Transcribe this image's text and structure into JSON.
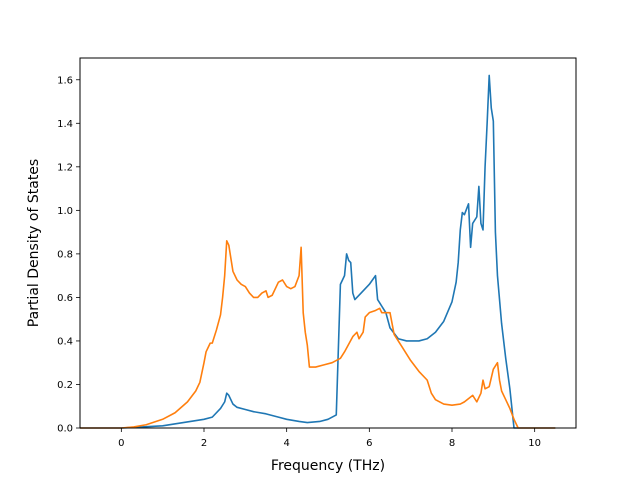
{
  "chart_data": {
    "type": "line",
    "title": "",
    "xlabel": "Frequency (THz)",
    "ylabel": "Partial Density of States",
    "xlim": [
      -1.0,
      11.0
    ],
    "ylim": [
      0.0,
      1.7
    ],
    "xticks": [
      0,
      2,
      4,
      6,
      8,
      10
    ],
    "yticks": [
      0.0,
      0.2,
      0.4,
      0.6,
      0.8,
      1.0,
      1.2,
      1.4,
      1.6
    ],
    "xtick_labels": [
      "0",
      "2",
      "4",
      "6",
      "8",
      "10"
    ],
    "ytick_labels": [
      "0.0",
      "0.2",
      "0.4",
      "0.6",
      "0.8",
      "1.0",
      "1.2",
      "1.4",
      "1.6"
    ],
    "grid": false,
    "legend": false,
    "series": [
      {
        "color": "#1f77b4",
        "points": [
          [
            -1.0,
            0.0
          ],
          [
            0.0,
            0.0
          ],
          [
            0.5,
            0.005
          ],
          [
            1.0,
            0.01
          ],
          [
            1.5,
            0.025
          ],
          [
            2.0,
            0.04
          ],
          [
            2.2,
            0.05
          ],
          [
            2.4,
            0.09
          ],
          [
            2.5,
            0.12
          ],
          [
            2.55,
            0.16
          ],
          [
            2.6,
            0.15
          ],
          [
            2.7,
            0.11
          ],
          [
            2.8,
            0.095
          ],
          [
            3.0,
            0.085
          ],
          [
            3.2,
            0.075
          ],
          [
            3.5,
            0.065
          ],
          [
            3.8,
            0.05
          ],
          [
            4.0,
            0.04
          ],
          [
            4.3,
            0.03
          ],
          [
            4.5,
            0.025
          ],
          [
            4.8,
            0.03
          ],
          [
            5.0,
            0.04
          ],
          [
            5.2,
            0.06
          ],
          [
            5.3,
            0.66
          ],
          [
            5.4,
            0.7
          ],
          [
            5.45,
            0.8
          ],
          [
            5.5,
            0.77
          ],
          [
            5.55,
            0.76
          ],
          [
            5.6,
            0.62
          ],
          [
            5.65,
            0.59
          ],
          [
            5.8,
            0.62
          ],
          [
            6.0,
            0.66
          ],
          [
            6.15,
            0.7
          ],
          [
            6.2,
            0.59
          ],
          [
            6.4,
            0.53
          ],
          [
            6.5,
            0.46
          ],
          [
            6.7,
            0.41
          ],
          [
            6.9,
            0.4
          ],
          [
            7.2,
            0.4
          ],
          [
            7.4,
            0.41
          ],
          [
            7.6,
            0.44
          ],
          [
            7.8,
            0.49
          ],
          [
            8.0,
            0.58
          ],
          [
            8.1,
            0.67
          ],
          [
            8.15,
            0.76
          ],
          [
            8.2,
            0.91
          ],
          [
            8.25,
            0.99
          ],
          [
            8.3,
            0.98
          ],
          [
            8.4,
            1.03
          ],
          [
            8.45,
            0.83
          ],
          [
            8.5,
            0.94
          ],
          [
            8.6,
            0.97
          ],
          [
            8.65,
            1.11
          ],
          [
            8.7,
            0.94
          ],
          [
            8.75,
            0.91
          ],
          [
            8.8,
            1.2
          ],
          [
            8.85,
            1.4
          ],
          [
            8.9,
            1.62
          ],
          [
            8.95,
            1.47
          ],
          [
            9.0,
            1.41
          ],
          [
            9.05,
            0.9
          ],
          [
            9.1,
            0.7
          ],
          [
            9.2,
            0.48
          ],
          [
            9.3,
            0.32
          ],
          [
            9.4,
            0.18
          ],
          [
            9.5,
            0.0
          ],
          [
            10.5,
            0.0
          ]
        ]
      },
      {
        "color": "#ff7f0e",
        "points": [
          [
            -1.0,
            0.0
          ],
          [
            0.0,
            0.0
          ],
          [
            0.3,
            0.005
          ],
          [
            0.6,
            0.015
          ],
          [
            1.0,
            0.04
          ],
          [
            1.3,
            0.07
          ],
          [
            1.6,
            0.12
          ],
          [
            1.8,
            0.17
          ],
          [
            1.9,
            0.21
          ],
          [
            2.0,
            0.3
          ],
          [
            2.05,
            0.35
          ],
          [
            2.15,
            0.39
          ],
          [
            2.2,
            0.39
          ],
          [
            2.3,
            0.45
          ],
          [
            2.4,
            0.52
          ],
          [
            2.45,
            0.6
          ],
          [
            2.5,
            0.7
          ],
          [
            2.55,
            0.86
          ],
          [
            2.6,
            0.84
          ],
          [
            2.7,
            0.72
          ],
          [
            2.8,
            0.68
          ],
          [
            2.9,
            0.66
          ],
          [
            3.0,
            0.65
          ],
          [
            3.1,
            0.62
          ],
          [
            3.2,
            0.6
          ],
          [
            3.3,
            0.6
          ],
          [
            3.4,
            0.62
          ],
          [
            3.5,
            0.63
          ],
          [
            3.55,
            0.6
          ],
          [
            3.65,
            0.61
          ],
          [
            3.8,
            0.67
          ],
          [
            3.9,
            0.68
          ],
          [
            4.0,
            0.65
          ],
          [
            4.1,
            0.64
          ],
          [
            4.2,
            0.65
          ],
          [
            4.3,
            0.7
          ],
          [
            4.35,
            0.83
          ],
          [
            4.4,
            0.53
          ],
          [
            4.45,
            0.44
          ],
          [
            4.5,
            0.38
          ],
          [
            4.55,
            0.28
          ],
          [
            4.7,
            0.28
          ],
          [
            4.9,
            0.29
          ],
          [
            5.1,
            0.3
          ],
          [
            5.3,
            0.32
          ],
          [
            5.4,
            0.35
          ],
          [
            5.6,
            0.42
          ],
          [
            5.7,
            0.44
          ],
          [
            5.75,
            0.41
          ],
          [
            5.85,
            0.44
          ],
          [
            5.9,
            0.51
          ],
          [
            6.0,
            0.53
          ],
          [
            6.15,
            0.54
          ],
          [
            6.25,
            0.55
          ],
          [
            6.3,
            0.53
          ],
          [
            6.5,
            0.53
          ],
          [
            6.6,
            0.43
          ],
          [
            6.8,
            0.37
          ],
          [
            7.0,
            0.31
          ],
          [
            7.2,
            0.26
          ],
          [
            7.4,
            0.22
          ],
          [
            7.5,
            0.16
          ],
          [
            7.6,
            0.13
          ],
          [
            7.8,
            0.11
          ],
          [
            8.0,
            0.105
          ],
          [
            8.2,
            0.11
          ],
          [
            8.3,
            0.12
          ],
          [
            8.5,
            0.15
          ],
          [
            8.6,
            0.12
          ],
          [
            8.7,
            0.16
          ],
          [
            8.75,
            0.22
          ],
          [
            8.8,
            0.18
          ],
          [
            8.9,
            0.19
          ],
          [
            9.0,
            0.27
          ],
          [
            9.1,
            0.3
          ],
          [
            9.15,
            0.22
          ],
          [
            9.2,
            0.17
          ],
          [
            9.3,
            0.13
          ],
          [
            9.4,
            0.09
          ],
          [
            9.5,
            0.04
          ],
          [
            9.6,
            0.0
          ],
          [
            10.5,
            0.0
          ]
        ]
      }
    ]
  }
}
